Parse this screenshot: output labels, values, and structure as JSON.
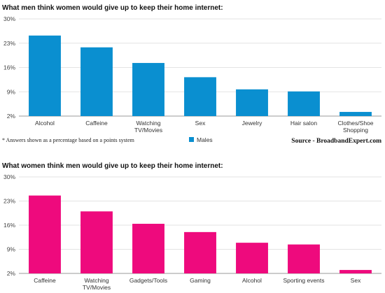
{
  "chart_data": [
    {
      "type": "bar",
      "title": "What men think women would give up to keep their home internet:",
      "categories": [
        "Alcohol",
        "Caffeine",
        "Watching TV/Movies",
        "Sex",
        "Jewelry",
        "Hair salon",
        "Clothes/Shoe Shopping"
      ],
      "category_lines": [
        [
          "Alcohol"
        ],
        [
          "Caffeine"
        ],
        [
          "Watching",
          "TV/Movies"
        ],
        [
          "Sex"
        ],
        [
          "Jewelry"
        ],
        [
          "Hair salon"
        ],
        [
          "Clothes/Shoe",
          "Shopping"
        ]
      ],
      "series": [
        {
          "name": "Males",
          "values": [
            25.2,
            21.8,
            17.3,
            13.2,
            9.7,
            9.1,
            3.2
          ],
          "color": "#0a8fd0"
        }
      ],
      "ylim": [
        2,
        30
      ],
      "yticks": [
        2,
        9,
        16,
        23,
        30
      ],
      "ytick_labels": [
        "2%",
        "9%",
        "16%",
        "23%",
        "30%"
      ],
      "grid": true,
      "legend": "bottom-center",
      "footnote": "* Answers shown as a percentage based on a points system",
      "source": "Source - BroadbandExpert.com"
    },
    {
      "type": "bar",
      "title": "What women think men would give up to keep their home internet:",
      "categories": [
        "Caffeine",
        "Watching TV/Movies",
        "Gadgets/Tools",
        "Gaming",
        "Alcohol",
        "Sporting events",
        "Sex"
      ],
      "category_lines": [
        [
          "Caffeine"
        ],
        [
          "Watching",
          "TV/Movies"
        ],
        [
          "Gadgets/Tools"
        ],
        [
          "Gaming"
        ],
        [
          "Alcohol"
        ],
        [
          "Sporting events"
        ],
        [
          "Sex"
        ]
      ],
      "series": [
        {
          "values": [
            24.6,
            20.0,
            16.4,
            14.0,
            10.9,
            10.4,
            3.0
          ],
          "color": "#ee0a7d"
        }
      ],
      "ylim": [
        2,
        30
      ],
      "yticks": [
        2,
        9,
        16,
        23,
        30
      ],
      "ytick_labels": [
        "2%",
        "9%",
        "16%",
        "23%",
        "30%"
      ],
      "grid": true
    }
  ]
}
